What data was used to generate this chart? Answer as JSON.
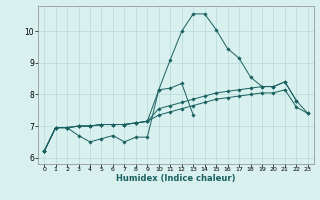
{
  "title": "",
  "xlabel": "Humidex (Indice chaleur)",
  "ylabel": "",
  "background_color": "#d8f0ee",
  "line_color": "#1a6060",
  "grid_color": "#b8dada",
  "xlim": [
    -0.5,
    23.5
  ],
  "ylim": [
    5.8,
    10.8
  ],
  "yticks": [
    6,
    7,
    8,
    9,
    10
  ],
  "xticks": [
    0,
    1,
    2,
    3,
    4,
    5,
    6,
    7,
    8,
    9,
    10,
    11,
    12,
    13,
    14,
    15,
    16,
    17,
    18,
    19,
    20,
    21,
    22,
    23
  ],
  "series": [
    [
      6.2,
      6.95,
      6.95,
      6.7,
      6.5,
      6.6,
      6.7,
      6.5,
      6.65,
      6.65,
      8.15,
      8.2,
      8.35,
      7.35,
      null,
      null,
      null,
      null,
      null,
      null,
      null,
      null,
      null,
      null
    ],
    [
      6.2,
      6.95,
      6.95,
      7.0,
      7.0,
      7.05,
      7.05,
      7.05,
      7.1,
      7.15,
      8.15,
      9.1,
      10.0,
      10.55,
      10.55,
      10.05,
      9.45,
      9.15,
      8.55,
      8.25,
      8.25,
      8.4,
      7.8,
      null
    ],
    [
      6.2,
      6.95,
      6.95,
      7.0,
      7.0,
      7.05,
      7.05,
      7.05,
      7.1,
      7.15,
      7.55,
      7.65,
      7.75,
      7.85,
      7.95,
      8.05,
      8.1,
      8.15,
      8.2,
      8.25,
      8.25,
      8.4,
      7.8,
      7.4
    ],
    [
      6.2,
      6.95,
      6.95,
      7.0,
      7.0,
      7.05,
      7.05,
      7.05,
      7.1,
      7.15,
      7.35,
      7.45,
      7.55,
      7.65,
      7.75,
      7.85,
      7.9,
      7.95,
      8.0,
      8.05,
      8.05,
      8.15,
      7.6,
      7.4
    ]
  ]
}
